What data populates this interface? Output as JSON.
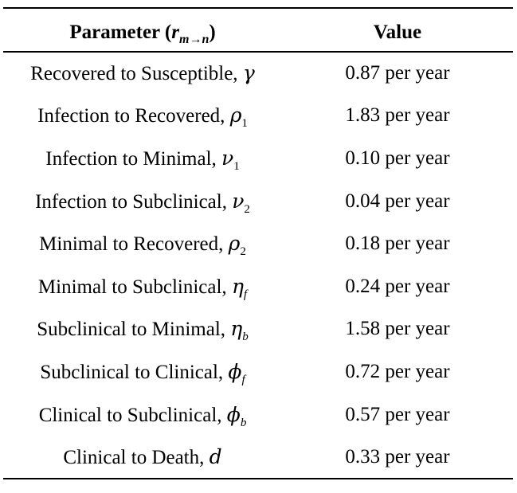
{
  "table": {
    "header": {
      "param_label": "Parameter (",
      "param_symbol": "r",
      "param_sub": "m→n",
      "param_close": ")",
      "value_label": "Value"
    },
    "rows": [
      {
        "label": "Recovered to Susceptible, ",
        "symbol": "γ",
        "sub": "",
        "value": "0.87 per year"
      },
      {
        "label": "Infection to Recovered, ",
        "symbol": "ρ",
        "sub": "1",
        "value": "1.83 per year"
      },
      {
        "label": "Infection to Minimal, ",
        "symbol": "ν",
        "sub": "1",
        "value": "0.10 per year"
      },
      {
        "label": "Infection to Subclinical, ",
        "symbol": "ν",
        "sub": "2",
        "value": "0.04 per year"
      },
      {
        "label": "Minimal to Recovered, ",
        "symbol": "ρ",
        "sub": "2",
        "value": "0.18 per year"
      },
      {
        "label": "Minimal to Subclinical, ",
        "symbol": "η",
        "sub": "f",
        "value": "0.24 per year"
      },
      {
        "label": "Subclinical to Minimal, ",
        "symbol": "η",
        "sub": "b",
        "value": "1.58 per year"
      },
      {
        "label": "Subclinical to Clinical, ",
        "symbol": "ϕ",
        "sub": "f",
        "value": "0.72 per year"
      },
      {
        "label": "Clinical to Subclinical, ",
        "symbol": "ϕ",
        "sub": "b",
        "value": "0.57 per year"
      },
      {
        "label": "Clinical to Death, ",
        "symbol": "d",
        "sub": "",
        "value": "0.33 per year"
      }
    ]
  }
}
